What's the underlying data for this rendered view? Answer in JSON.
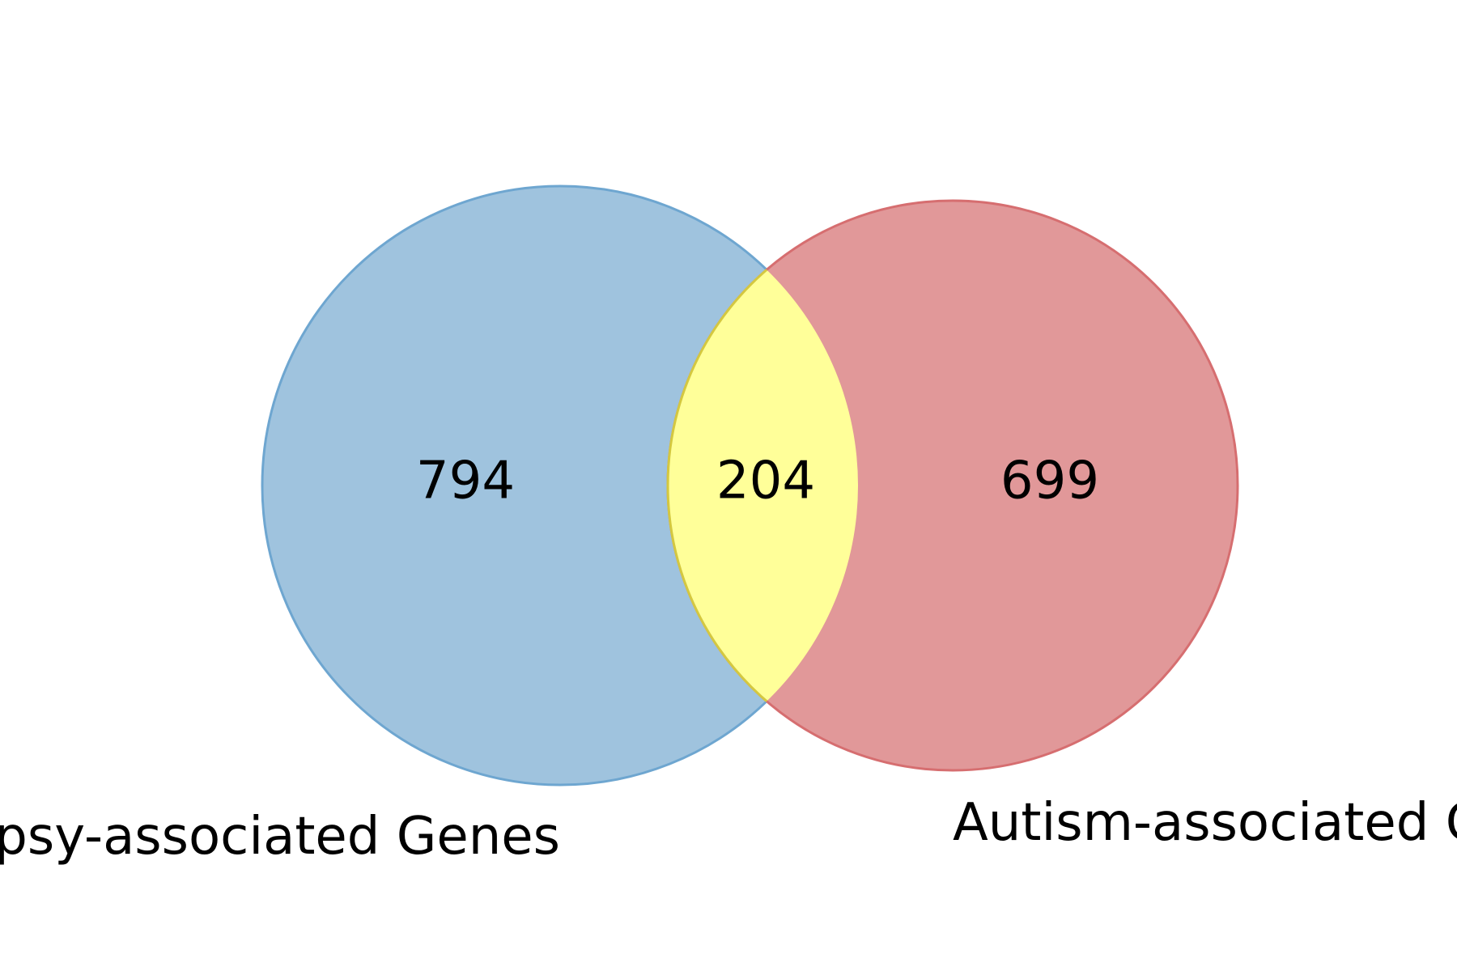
{
  "diagram": {
    "type": "venn-2",
    "sets": [
      {
        "label": "Epilepsy-associated Genes",
        "only_count": "794",
        "color": "#9fc3de",
        "stroke": "#6ea6d0"
      },
      {
        "label": "Autism-associated Genes",
        "only_count": "699",
        "color": "#e19899",
        "stroke": "#d66e70"
      }
    ],
    "intersection": {
      "count": "204",
      "color": "#ffff99",
      "stroke": "#d4c840"
    }
  }
}
